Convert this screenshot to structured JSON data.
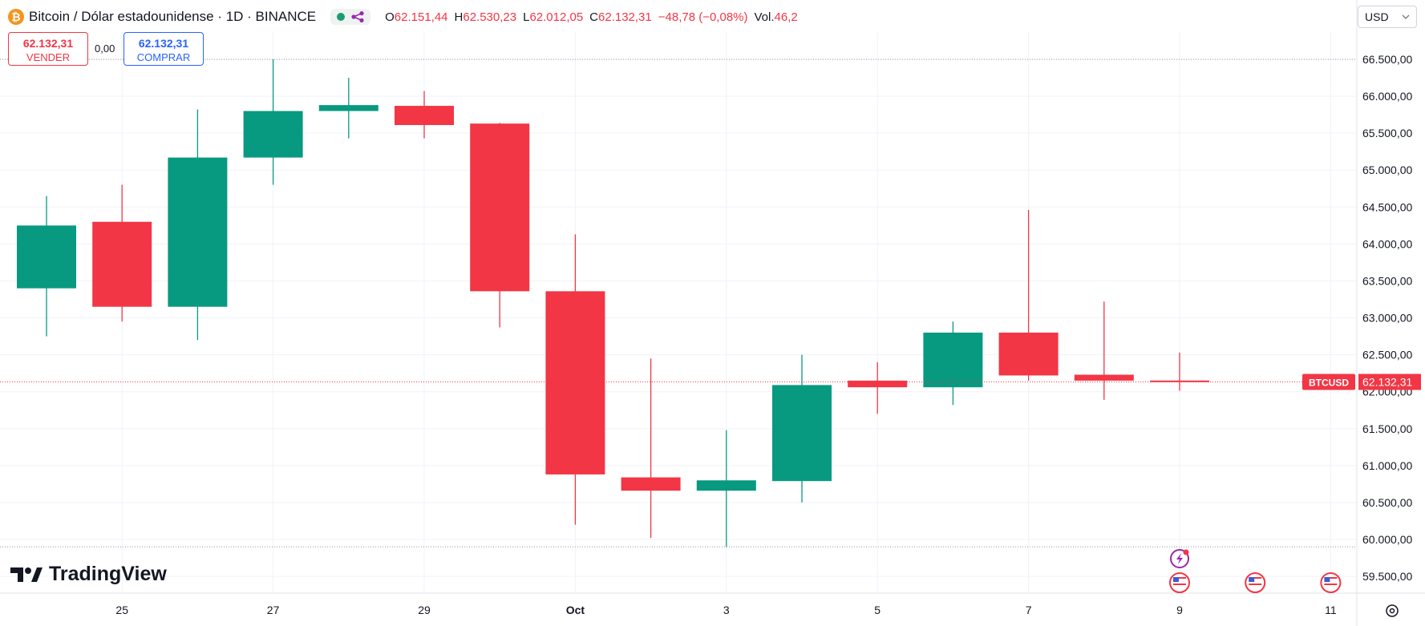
{
  "header": {
    "coin_icon": "bitcoin-icon",
    "coin_symbol": "₿",
    "title": "Bitcoin / Dólar estadounidense · 1D · BINANCE",
    "status_icon": "share-icon",
    "ohlc": [
      {
        "label": "O",
        "value": "62.151,44"
      },
      {
        "label": "H",
        "value": "62.530,23"
      },
      {
        "label": "L",
        "value": "62.012,05"
      },
      {
        "label": "C",
        "value": "62.132,31"
      },
      {
        "label": "",
        "value": "−48,78 (−0,08%)"
      },
      {
        "label": "Vol.",
        "value": "46,2"
      }
    ]
  },
  "trade": {
    "sell_price": "62.132,31",
    "sell_label": "VENDER",
    "spread": "0,00",
    "buy_price": "62.132,31",
    "buy_label": "COMPRAR"
  },
  "currency": {
    "label": "USD",
    "icon": "chevron-down-icon"
  },
  "branding": {
    "name": "TradingView",
    "icon": "tradingview-logo-icon"
  },
  "colors": {
    "up": "#089981",
    "down": "#f23645",
    "grid": "#f0f3fa",
    "last_price_line": "#f23645",
    "dotted_line": "#9598a1"
  },
  "chart_data": {
    "type": "candlestick",
    "symbol": "BTCUSD",
    "last_price": 62132.31,
    "last_price_label": "62.132,31",
    "ylim": [
      59250,
      67200
    ],
    "y_ticks": [
      59500,
      60000,
      60500,
      61000,
      61500,
      62000,
      62500,
      63000,
      63500,
      64000,
      64500,
      65000,
      65500,
      66000,
      66500
    ],
    "y_tick_labels": [
      "59.500,00",
      "60.000,00",
      "60.500,00",
      "61.000,00",
      "61.500,00",
      "62.000,00",
      "62.500,00",
      "63.000,00",
      "63.500,00",
      "64.000,00",
      "64.500,00",
      "65.000,00",
      "65.500,00",
      "66.000,00",
      "66.500,00"
    ],
    "dotted_levels": [
      66500,
      59900
    ],
    "x_labels": [
      {
        "index": 1,
        "text": "25"
      },
      {
        "index": 3,
        "text": "27"
      },
      {
        "index": 5,
        "text": "29"
      },
      {
        "index": 7,
        "text": "Oct"
      },
      {
        "index": 9,
        "text": "3"
      },
      {
        "index": 11,
        "text": "5"
      },
      {
        "index": 13,
        "text": "7"
      },
      {
        "index": 15,
        "text": "9"
      },
      {
        "index": 17,
        "text": "11"
      }
    ],
    "candles": [
      {
        "open": 63400,
        "high": 64650,
        "low": 62750,
        "close": 64250
      },
      {
        "open": 64300,
        "high": 64800,
        "low": 62950,
        "close": 63150
      },
      {
        "open": 63150,
        "high": 65820,
        "low": 62700,
        "close": 65170
      },
      {
        "open": 65170,
        "high": 66500,
        "low": 64800,
        "close": 65800
      },
      {
        "open": 65800,
        "high": 66250,
        "low": 65430,
        "close": 65880
      },
      {
        "open": 65870,
        "high": 66070,
        "low": 65430,
        "close": 65610
      },
      {
        "open": 65630,
        "high": 65640,
        "low": 62870,
        "close": 63360
      },
      {
        "open": 63360,
        "high": 64130,
        "low": 60200,
        "close": 60880
      },
      {
        "open": 60840,
        "high": 62450,
        "low": 60020,
        "close": 60660
      },
      {
        "open": 60660,
        "high": 61480,
        "low": 59900,
        "close": 60800
      },
      {
        "open": 60790,
        "high": 62500,
        "low": 60500,
        "close": 62090
      },
      {
        "open": 62150,
        "high": 62400,
        "low": 61700,
        "close": 62060
      },
      {
        "open": 62060,
        "high": 62950,
        "low": 61820,
        "close": 62800
      },
      {
        "open": 62800,
        "high": 64460,
        "low": 62150,
        "close": 62220
      },
      {
        "open": 62230,
        "high": 63220,
        "low": 61890,
        "close": 62150
      },
      {
        "open": 62151.44,
        "high": 62530.23,
        "low": 62012.05,
        "close": 62132.31
      }
    ],
    "events": [
      {
        "index": 15,
        "icon": "lightning-event-icon"
      },
      {
        "index": 15,
        "icon": "us-flag-icon"
      },
      {
        "index": 16,
        "icon": "us-flag-icon"
      },
      {
        "index": 17,
        "icon": "us-flag-icon"
      }
    ],
    "settings_icon": "gear-icon"
  }
}
